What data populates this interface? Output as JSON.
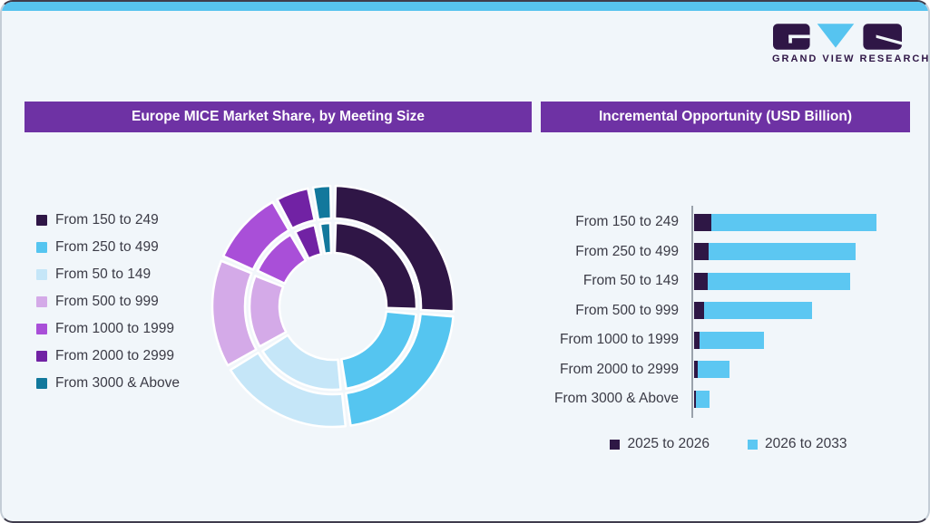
{
  "brand": {
    "name": "GRAND VIEW RESEARCH",
    "logo_parts": [
      "g-block",
      "v-triangle",
      "r-block"
    ],
    "logo_dark": "#2f1646",
    "logo_blue": "#56c4f0"
  },
  "theme": {
    "card_background": "#f1f6fa",
    "top_strip_blue": "#57c3ef",
    "header_purple": "#6e32a4",
    "text_color": "#3b3b46",
    "axis_color": "#9aa2ab"
  },
  "left_panel": {
    "title": "Europe MICE Market Share, by Meeting Size",
    "legend": [
      {
        "label": "From 150 to 249",
        "color": "#2f1646"
      },
      {
        "label": "From 250 to 499",
        "color": "#55c5f0"
      },
      {
        "label": "From 50 to 149",
        "color": "#c5e6f8"
      },
      {
        "label": "From 500 to 999",
        "color": "#d4aae8"
      },
      {
        "label": "From 1000 to 1999",
        "color": "#a94fd8"
      },
      {
        "label": "From 2000 to 2999",
        "color": "#7122a4"
      },
      {
        "label": "From 3000 & Above",
        "color": "#12789c"
      }
    ]
  },
  "right_panel": {
    "title": "Incremental Opportunity (USD Billion)",
    "categories": [
      "From 150 to 249",
      "From 250 to 499",
      "From 50 to 149",
      "From 500 to 999",
      "From 1000 to 1999",
      "From 2000 to 2999",
      "From 3000 & Above"
    ],
    "legend": [
      {
        "label": "2025 to 2026",
        "color": "#2e1745"
      },
      {
        "label": "2026 to 2033",
        "color": "#5cc7f2"
      }
    ]
  },
  "chart_data": [
    {
      "type": "pie",
      "variant": "double-ring-donut",
      "title": "Europe MICE Market Share, by Meeting Size",
      "categories": [
        "From 150 to 249",
        "From 250 to 499",
        "From 50 to 149",
        "From 500 to 999",
        "From 1000 to 1999",
        "From 2000 to 2999",
        "From 3000 & Above"
      ],
      "values": [
        26,
        22,
        18.5,
        15,
        10.5,
        5,
        3
      ],
      "unit": "percent share (estimated from arc angles; no data labels shown)",
      "colors": [
        "#2f1646",
        "#55c5f0",
        "#c5e6f8",
        "#d4aae8",
        "#a94fd8",
        "#7122a4",
        "#12789c"
      ],
      "rings": 2,
      "start_angle_deg": 0,
      "direction": "clockwise",
      "legend_position": "left"
    },
    {
      "type": "bar",
      "orientation": "horizontal",
      "stacked": true,
      "title": "Incremental Opportunity (USD Billion)",
      "categories": [
        "From 150 to 249",
        "From 250 to 499",
        "From 50 to 149",
        "From 500 to 999",
        "From 1000 to 1999",
        "From 2000 to 2999",
        "From 3000 & Above"
      ],
      "series": [
        {
          "name": "2025 to 2026",
          "color": "#2e1745",
          "values": [
            9.5,
            8.0,
            7.5,
            5.5,
            3.0,
            2.0,
            0.8
          ]
        },
        {
          "name": "2026 to 2033",
          "color": "#5cc7f2",
          "values": [
            90.5,
            80.5,
            78.0,
            59.0,
            35.5,
            17.5,
            7.5
          ]
        }
      ],
      "value_scale": "relative units, longest total bar = 100 (no numeric axis shown)",
      "grid": false,
      "legend_position": "bottom"
    }
  ]
}
